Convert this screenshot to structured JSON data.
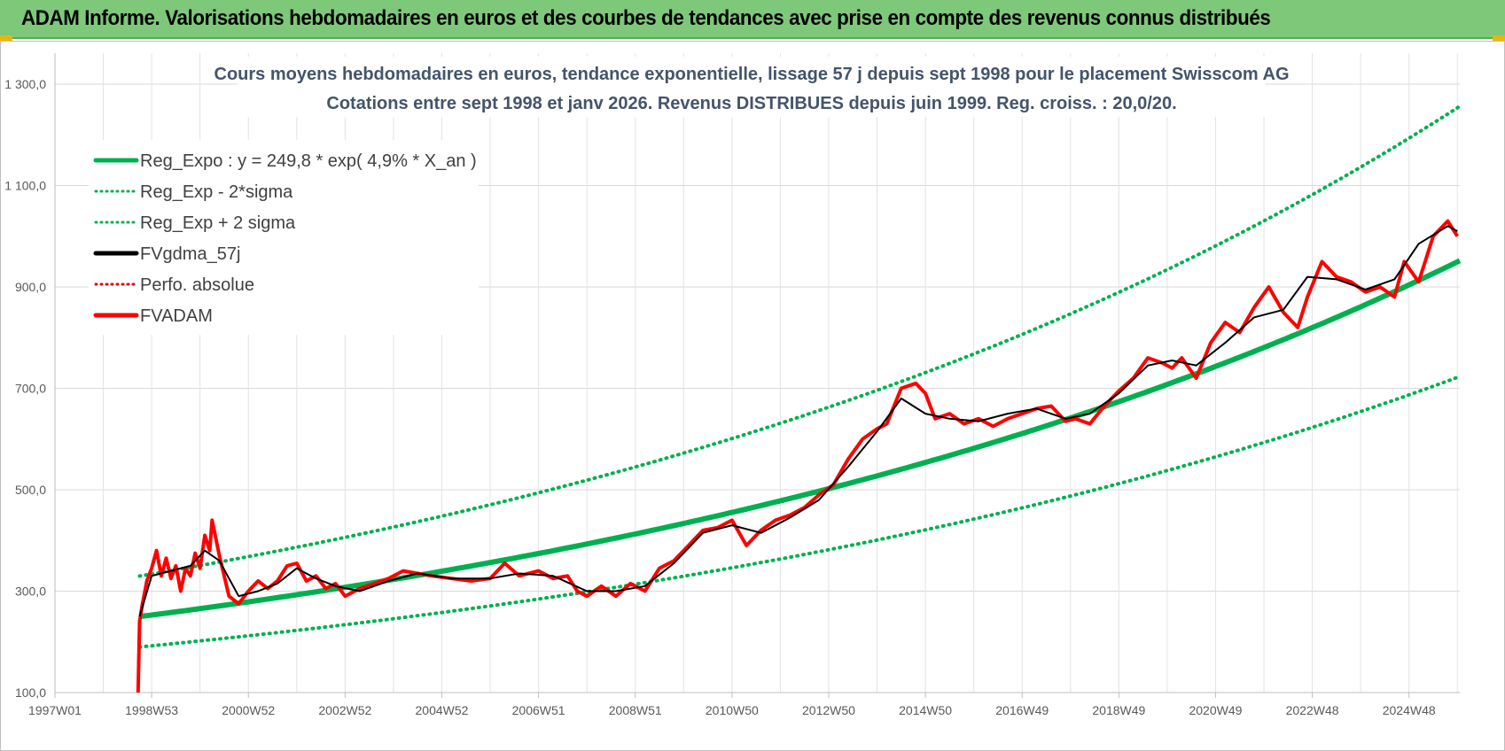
{
  "banner": {
    "title": "ADAM Informe. Valorisations hebdomadaires en euros et des courbes de tendances avec prise en compte des revenus connus distribués",
    "color": "#7ec87a"
  },
  "chart_data": {
    "type": "line",
    "title_line1": "Cours moyens hebdomadaires en euros, tendance exponentielle, lissage 57 j depuis sept 1998 pour le placement Swisscom AG",
    "title_line2": "Cotations entre sept 1998 et janv 2026. Revenus DISTRIBUES  depuis juin 1999.  Reg. croiss. : 20,0/20.",
    "y_ticks": [
      "100,0",
      "300,0",
      "500,0",
      "700,0",
      "900,0",
      "1 100,0",
      "1 300,0"
    ],
    "y_tick_values": [
      100,
      300,
      500,
      700,
      900,
      1100,
      1300
    ],
    "ylim": [
      100,
      1300
    ],
    "x_ticks": [
      "1997W01",
      "1998W53",
      "2000W52",
      "2002W52",
      "2004W52",
      "2006W51",
      "2008W51",
      "2010W50",
      "2012W50",
      "2014W50",
      "2016W49",
      "2018W49",
      "2020W49",
      "2022W48",
      "2024W48"
    ],
    "x_tick_years": [
      1997.0,
      1999.0,
      2001.0,
      2003.0,
      2005.0,
      2007.0,
      2009.0,
      2011.0,
      2013.0,
      2015.0,
      2017.0,
      2019.0,
      2021.0,
      2023.0,
      2025.0
    ],
    "xlim": [
      1997.0,
      2026.05
    ],
    "grid": true,
    "legend_placement": "top-left",
    "legend": [
      {
        "label": "Reg_Expo : y = 249,8 * exp( 4,9% *  X_an )",
        "color": "#00b050",
        "style": "solid"
      },
      {
        "label": "Reg_Exp - 2*sigma",
        "color": "#00b050",
        "style": "dotted"
      },
      {
        "label": "Reg_Exp + 2 sigma",
        "color": "#00b050",
        "style": "dotted"
      },
      {
        "label": "FVgdma_57j",
        "color": "#000000",
        "style": "solid"
      },
      {
        "label": "Perfo. absolue",
        "color": "#e00000",
        "style": "dotted"
      },
      {
        "label": "FVADAM",
        "color": "#ff0000",
        "style": "solid"
      }
    ],
    "regression": {
      "a": 249.8,
      "rate": 0.049,
      "start_year": 1998.75,
      "end_year": 2026.05,
      "lower_factor": 0.76,
      "upper_factor": 1.32
    },
    "series": [
      {
        "name": "FVADAM",
        "color": "#ff0000",
        "x": [
          1998.72,
          1998.75,
          1998.8,
          1998.9,
          1999.0,
          1999.1,
          1999.2,
          1999.3,
          1999.4,
          1999.5,
          1999.6,
          1999.7,
          1999.8,
          1999.9,
          2000.0,
          2000.1,
          2000.2,
          2000.25,
          2000.4,
          2000.6,
          2000.8,
          2001.0,
          2001.2,
          2001.4,
          2001.6,
          2001.8,
          2002.0,
          2002.2,
          2002.4,
          2002.6,
          2002.8,
          2003.0,
          2003.3,
          2003.6,
          2003.9,
          2004.2,
          2004.5,
          2004.8,
          2005.2,
          2005.6,
          2006.0,
          2006.3,
          2006.6,
          2007.0,
          2007.3,
          2007.6,
          2007.8,
          2008.0,
          2008.3,
          2008.6,
          2008.9,
          2009.2,
          2009.5,
          2009.8,
          2010.1,
          2010.4,
          2010.7,
          2011.0,
          2011.3,
          2011.6,
          2011.9,
          2012.2,
          2012.5,
          2012.8,
          2013.1,
          2013.4,
          2013.7,
          2014.0,
          2014.2,
          2014.5,
          2014.8,
          2015.0,
          2015.2,
          2015.5,
          2015.8,
          2016.1,
          2016.4,
          2016.7,
          2017.0,
          2017.3,
          2017.6,
          2017.9,
          2018.1,
          2018.4,
          2018.7,
          2019.0,
          2019.3,
          2019.6,
          2019.9,
          2020.1,
          2020.3,
          2020.6,
          2020.9,
          2021.2,
          2021.5,
          2021.8,
          2022.1,
          2022.4,
          2022.7,
          2022.9,
          2023.2,
          2023.5,
          2023.8,
          2024.1,
          2024.4,
          2024.7,
          2024.9,
          2025.2,
          2025.5,
          2025.8,
          2026.0
        ],
        "values": [
          100,
          240,
          270,
          320,
          345,
          380,
          330,
          365,
          325,
          350,
          300,
          345,
          330,
          375,
          345,
          410,
          380,
          440,
          370,
          290,
          275,
          300,
          320,
          305,
          320,
          350,
          355,
          320,
          330,
          305,
          315,
          290,
          305,
          315,
          325,
          340,
          335,
          330,
          325,
          320,
          325,
          355,
          330,
          340,
          325,
          330,
          300,
          290,
          310,
          290,
          315,
          300,
          345,
          360,
          390,
          420,
          425,
          440,
          390,
          420,
          440,
          450,
          465,
          490,
          510,
          560,
          600,
          620,
          630,
          700,
          710,
          690,
          640,
          650,
          630,
          640,
          625,
          640,
          650,
          660,
          665,
          635,
          640,
          630,
          665,
          695,
          720,
          760,
          750,
          740,
          760,
          720,
          790,
          830,
          810,
          860,
          900,
          850,
          820,
          880,
          950,
          920,
          910,
          890,
          900,
          880,
          950,
          910,
          1000,
          1030,
          1000
        ]
      },
      {
        "name": "FVgdma_57j",
        "color": "#000000",
        "x": [
          1998.75,
          1999.0,
          1999.4,
          1999.8,
          2000.1,
          2000.4,
          2000.8,
          2001.2,
          2001.6,
          2002.0,
          2002.4,
          2002.8,
          2003.3,
          2003.9,
          2004.5,
          2005.2,
          2006.0,
          2006.6,
          2007.3,
          2008.0,
          2008.6,
          2009.2,
          2009.8,
          2010.4,
          2011.0,
          2011.6,
          2012.2,
          2012.8,
          2013.4,
          2014.0,
          2014.5,
          2015.0,
          2015.5,
          2016.1,
          2016.7,
          2017.3,
          2017.9,
          2018.4,
          2019.0,
          2019.6,
          2020.1,
          2020.6,
          2021.2,
          2021.8,
          2022.4,
          2022.9,
          2023.5,
          2024.1,
          2024.7,
          2025.2,
          2025.8,
          2026.0
        ],
        "values": [
          250,
          330,
          340,
          350,
          380,
          360,
          290,
          300,
          315,
          345,
          325,
          310,
          300,
          320,
          335,
          325,
          325,
          335,
          330,
          300,
          300,
          310,
          355,
          415,
          430,
          415,
          445,
          480,
          545,
          615,
          680,
          650,
          640,
          635,
          650,
          660,
          640,
          650,
          690,
          745,
          755,
          745,
          790,
          840,
          855,
          920,
          915,
          895,
          915,
          985,
          1020,
          1010
        ]
      }
    ]
  }
}
